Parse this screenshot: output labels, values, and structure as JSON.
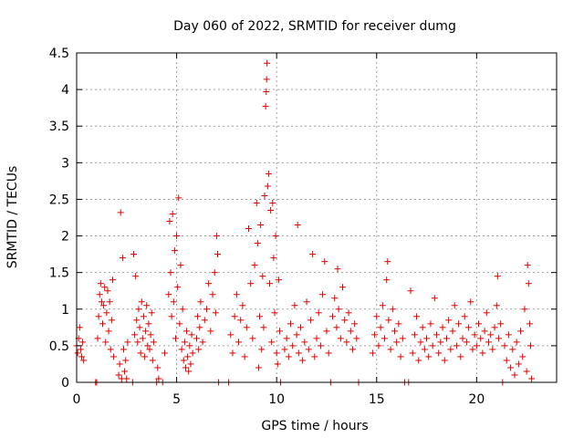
{
  "chart_data": {
    "type": "scatter",
    "title": "Day 060 of 2022, SRMTID for receiver dumg",
    "xlabel": "GPS time / hours",
    "ylabel": "SRMTID / TECUs",
    "xlim": [
      0,
      24
    ],
    "ylim": [
      0,
      4.5
    ],
    "grid": true,
    "marker": "+",
    "series_color": "#e00000",
    "x_ticks": [
      0,
      5,
      10,
      15,
      20
    ],
    "x_tick_labels": [
      "0",
      "5",
      "10",
      "15",
      "20"
    ],
    "y_ticks": [
      0,
      0.5,
      1,
      1.5,
      2,
      2.5,
      3,
      3.5,
      4,
      4.5
    ],
    "y_tick_labels": [
      "0",
      "0.5",
      "1",
      "1.5",
      "2",
      "2.5",
      "3",
      "3.5",
      "4",
      "4.5"
    ],
    "series": [
      {
        "name": "SRMTID",
        "points": [
          [
            0.0,
            0.5
          ],
          [
            0.05,
            0.4
          ],
          [
            0.1,
            0.6
          ],
          [
            0.15,
            0.75
          ],
          [
            0.2,
            0.45
          ],
          [
            0.25,
            0.35
          ],
          [
            0.3,
            0.55
          ],
          [
            0.35,
            0.3
          ],
          [
            0.95,
            0.0
          ],
          [
            1.0,
            0.0
          ],
          [
            1.05,
            0.6
          ],
          [
            1.1,
            0.9
          ],
          [
            1.15,
            1.2
          ],
          [
            1.2,
            1.35
          ],
          [
            1.25,
            1.1
          ],
          [
            1.3,
            0.8
          ],
          [
            1.35,
            1.05
          ],
          [
            1.4,
            1.3
          ],
          [
            1.45,
            0.55
          ],
          [
            1.5,
            0.95
          ],
          [
            1.55,
            1.25
          ],
          [
            1.6,
            0.7
          ],
          [
            1.65,
            1.1
          ],
          [
            1.7,
            0.45
          ],
          [
            1.75,
            0.85
          ],
          [
            1.8,
            1.4
          ],
          [
            1.85,
            0.35
          ],
          [
            2.1,
            0.1
          ],
          [
            2.15,
            0.25
          ],
          [
            2.2,
            2.32
          ],
          [
            2.25,
            0.05
          ],
          [
            2.3,
            1.7
          ],
          [
            2.35,
            0.45
          ],
          [
            2.4,
            0.15
          ],
          [
            2.45,
            0.3
          ],
          [
            2.5,
            0.05
          ],
          [
            2.55,
            0.55
          ],
          [
            2.8,
            0.0
          ],
          [
            2.85,
            1.75
          ],
          [
            2.9,
            0.65
          ],
          [
            2.95,
            1.45
          ],
          [
            3.0,
            0.85
          ],
          [
            3.05,
            0.55
          ],
          [
            3.1,
            1.0
          ],
          [
            3.15,
            0.75
          ],
          [
            3.2,
            0.4
          ],
          [
            3.25,
            1.1
          ],
          [
            3.3,
            0.6
          ],
          [
            3.35,
            0.9
          ],
          [
            3.4,
            0.35
          ],
          [
            3.45,
            0.7
          ],
          [
            3.5,
            1.05
          ],
          [
            3.55,
            0.5
          ],
          [
            3.6,
            0.8
          ],
          [
            3.65,
            0.45
          ],
          [
            3.7,
            0.65
          ],
          [
            3.75,
            0.95
          ],
          [
            3.8,
            0.3
          ],
          [
            3.85,
            0.55
          ],
          [
            4.0,
            0.0
          ],
          [
            4.05,
            0.2
          ],
          [
            4.1,
            0.05
          ],
          [
            4.3,
            0.0
          ],
          [
            4.4,
            0.4
          ],
          [
            4.6,
            1.2
          ],
          [
            4.65,
            2.2
          ],
          [
            4.7,
            1.5
          ],
          [
            4.75,
            0.9
          ],
          [
            4.8,
            2.3
          ],
          [
            4.85,
            1.1
          ],
          [
            4.9,
            1.8
          ],
          [
            4.95,
            0.6
          ],
          [
            5.0,
            2.0
          ],
          [
            5.05,
            1.3
          ],
          [
            5.1,
            2.52
          ],
          [
            5.15,
            0.8
          ],
          [
            5.2,
            1.6
          ],
          [
            5.25,
            0.45
          ],
          [
            5.3,
            1.0
          ],
          [
            5.35,
            0.3
          ],
          [
            5.4,
            0.55
          ],
          [
            5.45,
            0.2
          ],
          [
            5.5,
            0.7
          ],
          [
            5.55,
            0.35
          ],
          [
            5.6,
            0.15
          ],
          [
            5.65,
            0.5
          ],
          [
            5.7,
            0.25
          ],
          [
            5.75,
            0.65
          ],
          [
            5.8,
            0.4
          ],
          [
            6.0,
            0.6
          ],
          [
            6.05,
            0.9
          ],
          [
            6.1,
            0.45
          ],
          [
            6.15,
            0.75
          ],
          [
            6.2,
            1.1
          ],
          [
            6.3,
            0.55
          ],
          [
            6.4,
            0.85
          ],
          [
            6.5,
            1.0
          ],
          [
            6.6,
            1.35
          ],
          [
            6.7,
            0.7
          ],
          [
            6.8,
            1.2
          ],
          [
            6.9,
            1.5
          ],
          [
            6.95,
            0.95
          ],
          [
            7.0,
            2.0
          ],
          [
            7.05,
            1.75
          ],
          [
            7.1,
            0.0
          ],
          [
            7.6,
            0.0
          ],
          [
            7.7,
            0.65
          ],
          [
            7.8,
            0.4
          ],
          [
            7.9,
            0.9
          ],
          [
            8.0,
            1.2
          ],
          [
            8.1,
            0.55
          ],
          [
            8.2,
            0.85
          ],
          [
            8.3,
            1.05
          ],
          [
            8.4,
            0.35
          ],
          [
            8.5,
            0.75
          ],
          [
            8.6,
            2.1
          ],
          [
            8.7,
            1.35
          ],
          [
            8.8,
            0.6
          ],
          [
            8.9,
            1.6
          ],
          [
            9.0,
            2.45
          ],
          [
            9.05,
            1.9
          ],
          [
            9.1,
            0.2
          ],
          [
            9.15,
            0.9
          ],
          [
            9.2,
            2.15
          ],
          [
            9.25,
            0.45
          ],
          [
            9.3,
            1.45
          ],
          [
            9.35,
            0.75
          ],
          [
            9.4,
            2.55
          ],
          [
            9.45,
            3.77
          ],
          [
            9.48,
            3.97
          ],
          [
            9.5,
            4.14
          ],
          [
            9.52,
            4.36
          ],
          [
            9.55,
            2.68
          ],
          [
            9.6,
            2.85
          ],
          [
            9.65,
            1.35
          ],
          [
            9.7,
            2.35
          ],
          [
            9.75,
            0.55
          ],
          [
            9.8,
            2.45
          ],
          [
            9.85,
            1.7
          ],
          [
            9.9,
            0.95
          ],
          [
            9.95,
            2.0
          ],
          [
            10.0,
            0.4
          ],
          [
            10.05,
            0.25
          ],
          [
            10.1,
            1.4
          ],
          [
            10.15,
            0.7
          ],
          [
            10.2,
            0.0
          ],
          [
            10.4,
            0.45
          ],
          [
            10.5,
            0.6
          ],
          [
            10.6,
            0.35
          ],
          [
            10.7,
            0.8
          ],
          [
            10.8,
            0.5
          ],
          [
            10.9,
            1.05
          ],
          [
            11.0,
            0.65
          ],
          [
            11.05,
            2.15
          ],
          [
            11.1,
            0.4
          ],
          [
            11.2,
            0.75
          ],
          [
            11.3,
            0.3
          ],
          [
            11.4,
            0.55
          ],
          [
            11.5,
            1.1
          ],
          [
            11.6,
            0.45
          ],
          [
            11.7,
            0.85
          ],
          [
            11.8,
            1.75
          ],
          [
            11.9,
            0.35
          ],
          [
            12.0,
            0.6
          ],
          [
            12.1,
            0.95
          ],
          [
            12.2,
            0.5
          ],
          [
            12.3,
            1.2
          ],
          [
            12.4,
            1.65
          ],
          [
            12.5,
            0.7
          ],
          [
            12.6,
            0.4
          ],
          [
            12.7,
            0.0
          ],
          [
            12.8,
            0.9
          ],
          [
            12.9,
            1.15
          ],
          [
            13.0,
            0.75
          ],
          [
            13.05,
            1.55
          ],
          [
            13.1,
            1.0
          ],
          [
            13.2,
            0.6
          ],
          [
            13.3,
            1.3
          ],
          [
            13.4,
            0.85
          ],
          [
            13.5,
            0.55
          ],
          [
            13.6,
            0.95
          ],
          [
            13.7,
            0.7
          ],
          [
            13.8,
            0.45
          ],
          [
            13.9,
            0.8
          ],
          [
            14.0,
            0.6
          ],
          [
            14.1,
            0.0
          ],
          [
            14.8,
            0.4
          ],
          [
            14.9,
            0.65
          ],
          [
            15.0,
            0.9
          ],
          [
            15.1,
            0.5
          ],
          [
            15.2,
            0.75
          ],
          [
            15.3,
            1.05
          ],
          [
            15.4,
            0.6
          ],
          [
            15.5,
            1.4
          ],
          [
            15.55,
            1.65
          ],
          [
            15.6,
            0.85
          ],
          [
            15.7,
            0.45
          ],
          [
            15.8,
            1.0
          ],
          [
            15.9,
            0.7
          ],
          [
            16.0,
            0.55
          ],
          [
            16.1,
            0.8
          ],
          [
            16.2,
            0.35
          ],
          [
            16.3,
            0.6
          ],
          [
            16.4,
            0.0
          ],
          [
            16.6,
            0.0
          ],
          [
            16.7,
            1.25
          ],
          [
            16.8,
            0.4
          ],
          [
            16.9,
            0.65
          ],
          [
            17.0,
            0.9
          ],
          [
            17.1,
            0.3
          ],
          [
            17.2,
            0.55
          ],
          [
            17.3,
            0.75
          ],
          [
            17.4,
            0.45
          ],
          [
            17.5,
            0.6
          ],
          [
            17.6,
            0.35
          ],
          [
            17.7,
            0.8
          ],
          [
            17.8,
            0.5
          ],
          [
            17.9,
            1.15
          ],
          [
            18.0,
            0.65
          ],
          [
            18.1,
            0.4
          ],
          [
            18.2,
            0.55
          ],
          [
            18.3,
            0.75
          ],
          [
            18.4,
            0.3
          ],
          [
            18.5,
            0.6
          ],
          [
            18.6,
            0.85
          ],
          [
            18.7,
            0.45
          ],
          [
            18.8,
            0.7
          ],
          [
            18.9,
            1.05
          ],
          [
            19.0,
            0.5
          ],
          [
            19.1,
            0.8
          ],
          [
            19.2,
            0.35
          ],
          [
            19.3,
            0.6
          ],
          [
            19.4,
            0.9
          ],
          [
            19.5,
            0.55
          ],
          [
            19.6,
            0.75
          ],
          [
            19.7,
            1.1
          ],
          [
            19.8,
            0.45
          ],
          [
            19.9,
            0.65
          ],
          [
            20.0,
            0.5
          ],
          [
            20.1,
            0.8
          ],
          [
            20.2,
            0.6
          ],
          [
            20.3,
            0.4
          ],
          [
            20.4,
            0.7
          ],
          [
            20.5,
            0.95
          ],
          [
            20.6,
            0.55
          ],
          [
            20.7,
            0.65
          ],
          [
            20.8,
            0.45
          ],
          [
            20.9,
            0.75
          ],
          [
            21.0,
            1.05
          ],
          [
            21.05,
            1.45
          ],
          [
            21.1,
            0.6
          ],
          [
            21.2,
            0.8
          ],
          [
            21.3,
            0.0
          ],
          [
            21.4,
            0.5
          ],
          [
            21.5,
            0.3
          ],
          [
            21.6,
            0.65
          ],
          [
            21.7,
            0.2
          ],
          [
            21.8,
            0.45
          ],
          [
            21.9,
            0.1
          ],
          [
            22.0,
            0.55
          ],
          [
            22.1,
            0.25
          ],
          [
            22.2,
            0.7
          ],
          [
            22.3,
            0.35
          ],
          [
            22.4,
            1.0
          ],
          [
            22.5,
            0.15
          ],
          [
            22.55,
            1.6
          ],
          [
            22.6,
            1.35
          ],
          [
            22.65,
            0.8
          ],
          [
            22.7,
            0.5
          ],
          [
            22.75,
            0.05
          ]
        ]
      }
    ]
  }
}
